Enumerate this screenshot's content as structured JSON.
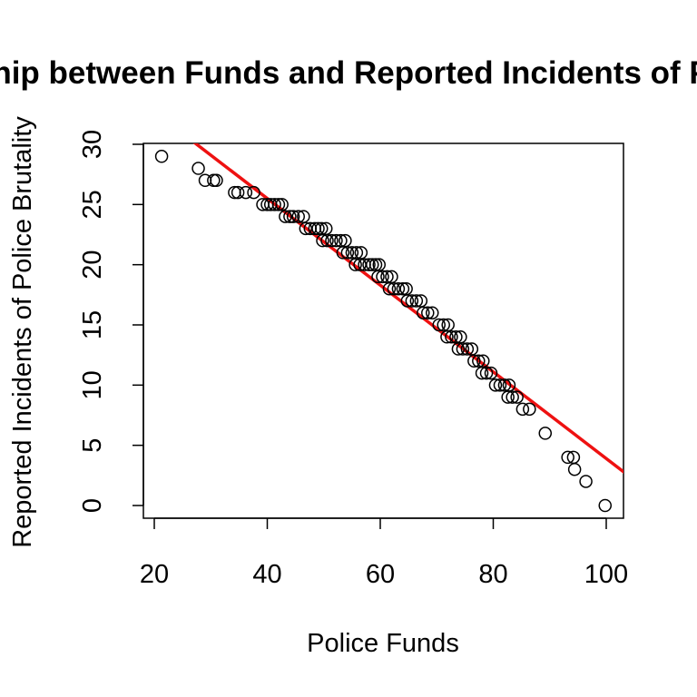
{
  "chart_data": {
    "type": "scatter",
    "title": "Relationship between Funds and Reported Incidents of Police Brutality",
    "xlabel": "Police Funds",
    "ylabel": "Reported Incidents of Police Brutality",
    "xlim": [
      20,
      100
    ],
    "ylim": [
      0,
      30
    ],
    "xticks": [
      "20",
      "40",
      "60",
      "80",
      "100"
    ],
    "yticks": [
      "0",
      "5",
      "10",
      "15",
      "20",
      "25",
      "30"
    ],
    "grid": false,
    "legend": "none",
    "point_color": "#000000",
    "line_color": "#ee1111",
    "fit_line": {
      "intercept": 39.9,
      "slope": -0.36
    },
    "points": [
      [
        21.3,
        29
      ],
      [
        27.8,
        28
      ],
      [
        29.0,
        27
      ],
      [
        30.5,
        27
      ],
      [
        31.0,
        27
      ],
      [
        34.2,
        26
      ],
      [
        34.8,
        26
      ],
      [
        36.2,
        26
      ],
      [
        37.6,
        26
      ],
      [
        39.2,
        25
      ],
      [
        40.0,
        25
      ],
      [
        40.6,
        25
      ],
      [
        41.3,
        25
      ],
      [
        42.0,
        25
      ],
      [
        42.6,
        25
      ],
      [
        43.2,
        24
      ],
      [
        44.0,
        24
      ],
      [
        44.6,
        24
      ],
      [
        45.5,
        24
      ],
      [
        46.4,
        24
      ],
      [
        46.8,
        23
      ],
      [
        47.6,
        23
      ],
      [
        48.4,
        23
      ],
      [
        49.0,
        23
      ],
      [
        49.6,
        23
      ],
      [
        50.4,
        23
      ],
      [
        49.8,
        22
      ],
      [
        50.6,
        22
      ],
      [
        51.4,
        22
      ],
      [
        52.2,
        22
      ],
      [
        53.0,
        22
      ],
      [
        53.8,
        22
      ],
      [
        53.4,
        21
      ],
      [
        54.2,
        21
      ],
      [
        55.0,
        21
      ],
      [
        55.8,
        21
      ],
      [
        56.6,
        21
      ],
      [
        55.6,
        20
      ],
      [
        56.4,
        20
      ],
      [
        57.2,
        20
      ],
      [
        58.0,
        20
      ],
      [
        58.6,
        20
      ],
      [
        59.2,
        20
      ],
      [
        59.8,
        20
      ],
      [
        59.6,
        19
      ],
      [
        60.4,
        19
      ],
      [
        61.2,
        19
      ],
      [
        62.0,
        19
      ],
      [
        61.6,
        18
      ],
      [
        62.4,
        18
      ],
      [
        63.2,
        18
      ],
      [
        64.0,
        18
      ],
      [
        64.6,
        18
      ],
      [
        64.8,
        17
      ],
      [
        65.6,
        17
      ],
      [
        66.4,
        17
      ],
      [
        67.2,
        17
      ],
      [
        67.6,
        16
      ],
      [
        68.4,
        16
      ],
      [
        69.2,
        16
      ],
      [
        70.4,
        15
      ],
      [
        71.2,
        15
      ],
      [
        72.0,
        15
      ],
      [
        71.8,
        14
      ],
      [
        72.6,
        14
      ],
      [
        73.4,
        14
      ],
      [
        74.2,
        14
      ],
      [
        73.8,
        13
      ],
      [
        74.6,
        13
      ],
      [
        75.4,
        13
      ],
      [
        76.2,
        13
      ],
      [
        76.6,
        12
      ],
      [
        77.4,
        12
      ],
      [
        78.2,
        12
      ],
      [
        78.0,
        11
      ],
      [
        78.8,
        11
      ],
      [
        79.6,
        11
      ],
      [
        80.4,
        10
      ],
      [
        81.2,
        10
      ],
      [
        82.0,
        10
      ],
      [
        82.8,
        10
      ],
      [
        82.6,
        9
      ],
      [
        83.4,
        9
      ],
      [
        84.2,
        9
      ],
      [
        85.2,
        8
      ],
      [
        86.4,
        8
      ],
      [
        89.2,
        6
      ],
      [
        93.2,
        4
      ],
      [
        94.2,
        4
      ],
      [
        94.4,
        3
      ],
      [
        96.4,
        2
      ],
      [
        99.8,
        0
      ]
    ]
  }
}
